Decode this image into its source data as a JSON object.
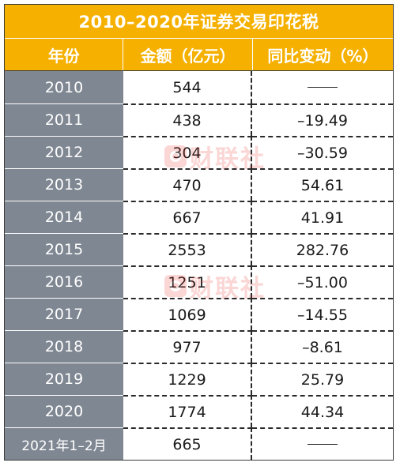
{
  "table": {
    "title": "2010–2020年证券交易印花税",
    "headers": [
      "年份",
      "金额（亿元）",
      "同比变动（%）"
    ],
    "rows": [
      {
        "year": "2010",
        "amount": "544",
        "change": "",
        "change_is_dash": true,
        "negative": false,
        "amount_red": false
      },
      {
        "year": "2011",
        "amount": "438",
        "change": "–19.49",
        "change_is_dash": false,
        "negative": true,
        "amount_red": false
      },
      {
        "year": "2012",
        "amount": "304",
        "change": "–30.59",
        "change_is_dash": false,
        "negative": true,
        "amount_red": false
      },
      {
        "year": "2013",
        "amount": "470",
        "change": "54.61",
        "change_is_dash": false,
        "negative": false,
        "amount_red": false
      },
      {
        "year": "2014",
        "amount": "667",
        "change": "41.91",
        "change_is_dash": false,
        "negative": false,
        "amount_red": false
      },
      {
        "year": "2015",
        "amount": "2553",
        "change": "282.76",
        "change_is_dash": false,
        "negative": false,
        "amount_red": false
      },
      {
        "year": "2016",
        "amount": "1251",
        "change": "–51.00",
        "change_is_dash": false,
        "negative": true,
        "amount_red": false
      },
      {
        "year": "2017",
        "amount": "1069",
        "change": "–14.55",
        "change_is_dash": false,
        "negative": true,
        "amount_red": false
      },
      {
        "year": "2018",
        "amount": "977",
        "change": "–8.61",
        "change_is_dash": false,
        "negative": true,
        "amount_red": false
      },
      {
        "year": "2019",
        "amount": "1229",
        "change": "25.79",
        "change_is_dash": false,
        "negative": false,
        "amount_red": false
      },
      {
        "year": "2020",
        "amount": "1774",
        "change": "44.34",
        "change_is_dash": false,
        "negative": false,
        "amount_red": false
      },
      {
        "year": "2021年1–2月",
        "amount": "665",
        "change": "",
        "change_is_dash": true,
        "negative": false,
        "amount_red": true
      }
    ]
  },
  "watermark": {
    "text": "财联社"
  },
  "colors": {
    "header_bg": "#f5b000",
    "year_col_bg": "#7f8792",
    "negative": "#e8251e"
  }
}
